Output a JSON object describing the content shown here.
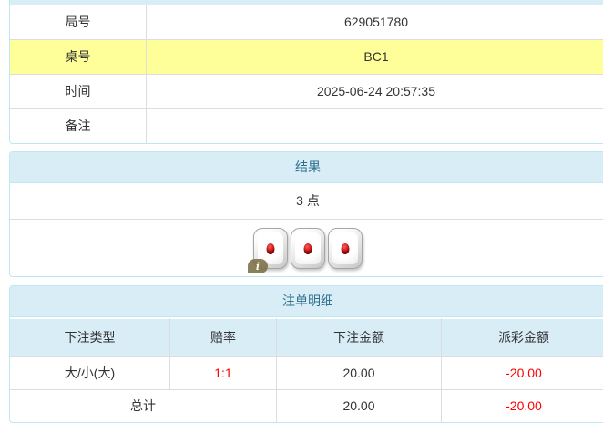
{
  "colors": {
    "heading_bg": "#d9edf7",
    "heading_text": "#31708f",
    "panel_border": "#bce8f1",
    "highlight_row_bg": "#ffff99",
    "negative_text": "#ff0000"
  },
  "info_table": {
    "rows": [
      {
        "label": "局号",
        "value": "629051780",
        "highlight": false
      },
      {
        "label": "桌号",
        "value": "BC1",
        "highlight": true
      },
      {
        "label": "时间",
        "value": "2025-06-24 20:57:35",
        "highlight": false
      },
      {
        "label": "备注",
        "value": "",
        "highlight": false
      }
    ]
  },
  "result_panel": {
    "title": "结果",
    "points": "3 点",
    "dice": [
      1,
      1,
      1
    ],
    "info_badge": "i"
  },
  "bets_panel": {
    "title": "注单明细",
    "columns": [
      "下注类型",
      "赔率",
      "下注金额",
      "派彩金额"
    ],
    "rows": [
      {
        "type": "大/小(大)",
        "odds": "1:1",
        "amount": "20.00",
        "payout": "-20.00"
      }
    ],
    "total": {
      "label": "总计",
      "amount": "20.00",
      "payout": "-20.00"
    }
  }
}
